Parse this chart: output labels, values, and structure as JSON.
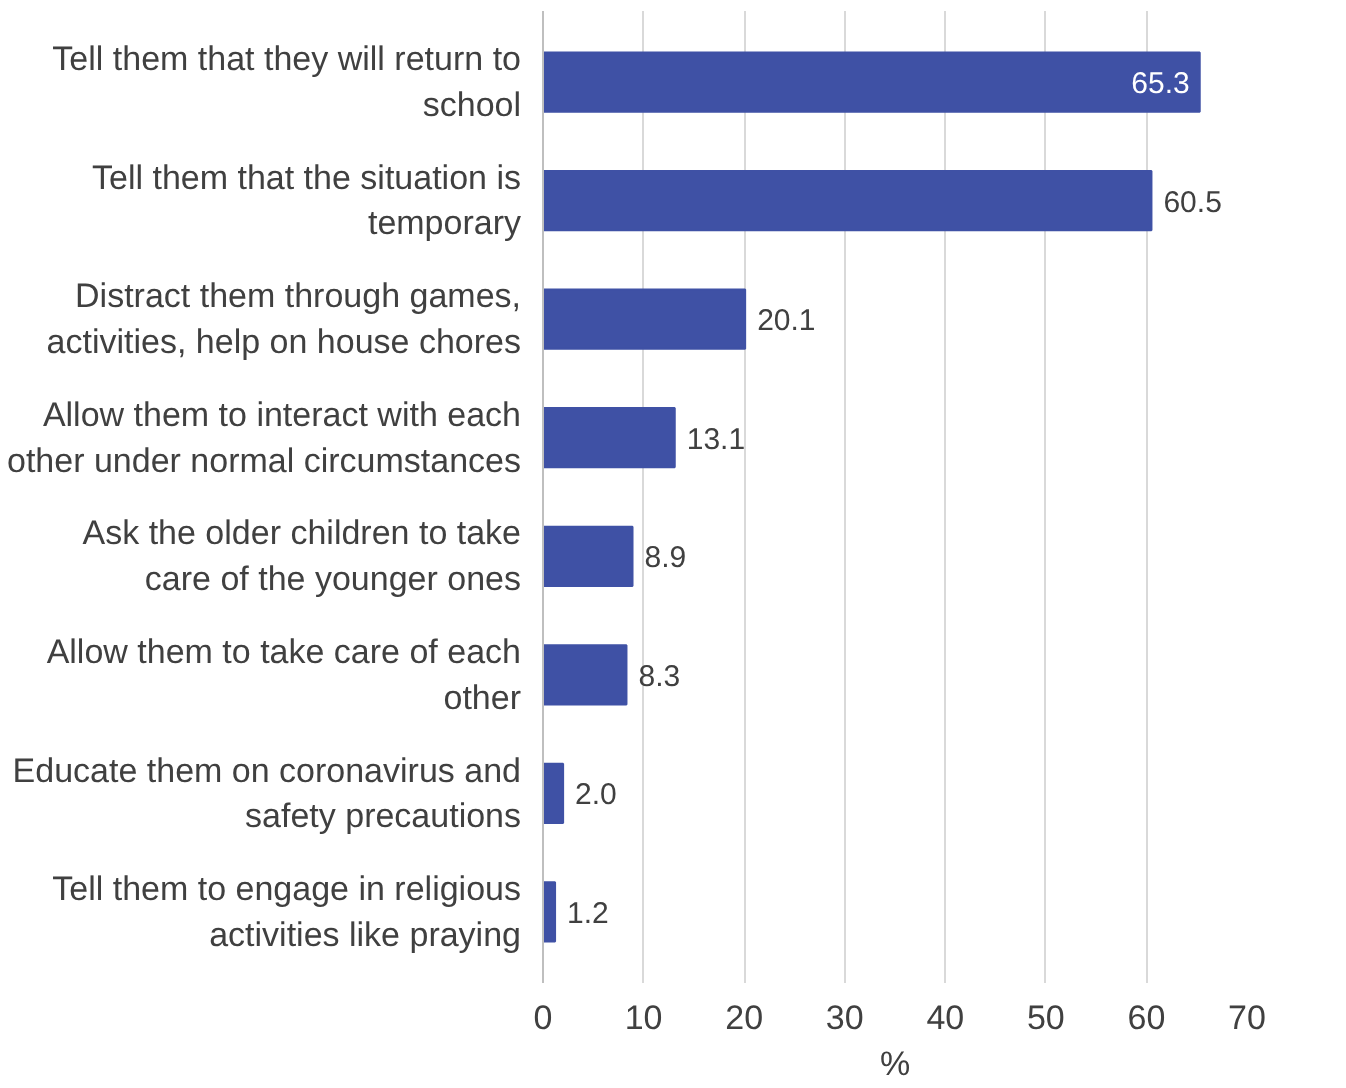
{
  "chart_data": {
    "type": "bar",
    "orientation": "horizontal",
    "xlabel": "%",
    "categories": [
      "Tell them that they will return to school",
      "Tell them that the situation is temporary",
      "Distract them through games, activities, help on house chores",
      "Allow them to interact with each other under normal circumstances",
      "Ask the older children to take care of the younger ones",
      "Allow them to take care of each other",
      "Educate them on coronavirus and safety precautions",
      "Tell them to engage in religious activities like praying"
    ],
    "values": [
      65.3,
      60.5,
      20.1,
      13.1,
      8.9,
      8.3,
      2.0,
      1.2
    ],
    "value_labels": [
      "65.3",
      "60.5",
      "20.1",
      "13.1",
      "8.9",
      "8.3",
      "2.0",
      "1.2"
    ],
    "color": "#3f51a5",
    "xlim": [
      0,
      70
    ],
    "xticks": [
      0,
      10,
      20,
      30,
      40,
      50,
      60,
      70
    ],
    "grid": "x"
  }
}
